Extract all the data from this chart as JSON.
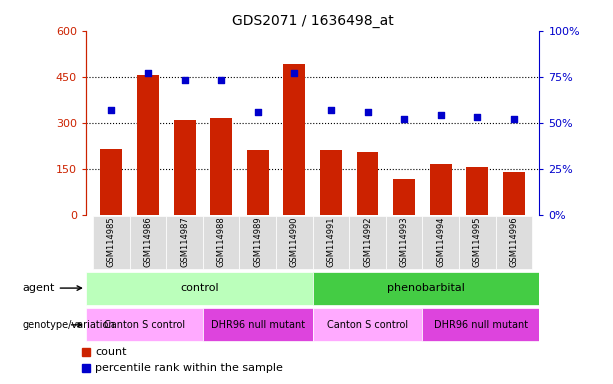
{
  "title": "GDS2071 / 1636498_at",
  "samples": [
    "GSM114985",
    "GSM114986",
    "GSM114987",
    "GSM114988",
    "GSM114989",
    "GSM114990",
    "GSM114991",
    "GSM114992",
    "GSM114993",
    "GSM114994",
    "GSM114995",
    "GSM114996"
  ],
  "counts": [
    215,
    455,
    310,
    315,
    210,
    490,
    210,
    205,
    115,
    165,
    155,
    140
  ],
  "percentile_ranks": [
    57,
    77,
    73,
    73,
    56,
    77,
    57,
    56,
    52,
    54,
    53,
    52
  ],
  "ylim_left": [
    0,
    600
  ],
  "ylim_right": [
    0,
    100
  ],
  "yticks_left": [
    0,
    150,
    300,
    450,
    600
  ],
  "ytick_labels_left": [
    "0",
    "150",
    "300",
    "450",
    "600"
  ],
  "yticks_right": [
    0,
    25,
    50,
    75,
    100
  ],
  "ytick_labels_right": [
    "0%",
    "25%",
    "50%",
    "75%",
    "100%"
  ],
  "hlines": [
    150,
    300,
    450
  ],
  "bar_color": "#cc2200",
  "scatter_color": "#0000cc",
  "agent_labels": [
    "control",
    "phenobarbital"
  ],
  "agent_col1": "#bbffbb",
  "agent_col2": "#44cc44",
  "geno_labels": [
    "Canton S control",
    "DHR96 null mutant",
    "Canton S control",
    "DHR96 null mutant"
  ],
  "geno_col1": "#ffaaff",
  "geno_col2": "#dd44dd",
  "legend_count": "count",
  "legend_pct": "percentile rank within the sample",
  "left_axis_color": "#cc2200",
  "right_axis_color": "#0000cc",
  "tick_bg": "#dddddd"
}
